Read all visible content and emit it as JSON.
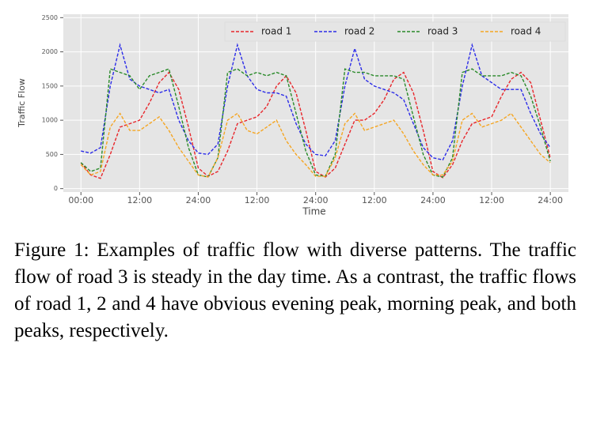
{
  "chart_data": {
    "type": "line",
    "xlabel": "Time",
    "ylabel": "Traffic Flow",
    "x": [
      0,
      2,
      4,
      6,
      8,
      10,
      12,
      14,
      16,
      18,
      20,
      22,
      24,
      26,
      28,
      30,
      32,
      34,
      36,
      38,
      40,
      42,
      44,
      46,
      48,
      50,
      52,
      54,
      56,
      58,
      60,
      62,
      64,
      66,
      68,
      70,
      72,
      74,
      76,
      78,
      80,
      82,
      84,
      86,
      88,
      90,
      92,
      94,
      96
    ],
    "series": [
      {
        "name": "road 1",
        "color": "#e8262b",
        "values": [
          380,
          200,
          150,
          500,
          900,
          950,
          1000,
          1250,
          1550,
          1700,
          1450,
          900,
          300,
          180,
          250,
          550,
          950,
          1000,
          1050,
          1200,
          1500,
          1650,
          1400,
          850,
          250,
          170,
          300,
          650,
          1000,
          1000,
          1100,
          1300,
          1600,
          1700,
          1400,
          850,
          250,
          160,
          350,
          700,
          950,
          1000,
          1050,
          1350,
          1600,
          1700,
          1550,
          1000,
          450
        ]
      },
      {
        "name": "road 2",
        "color": "#2b2be8",
        "values": [
          550,
          520,
          600,
          1500,
          2100,
          1600,
          1500,
          1450,
          1400,
          1450,
          1000,
          700,
          520,
          500,
          650,
          1500,
          2100,
          1650,
          1450,
          1400,
          1400,
          1350,
          950,
          650,
          500,
          480,
          700,
          1500,
          2050,
          1600,
          1500,
          1450,
          1400,
          1300,
          950,
          600,
          450,
          420,
          700,
          1500,
          2100,
          1650,
          1550,
          1450,
          1450,
          1450,
          1100,
          800,
          600
        ]
      },
      {
        "name": "road 3",
        "color": "#2a8a2a",
        "values": [
          380,
          250,
          300,
          1750,
          1700,
          1650,
          1450,
          1650,
          1700,
          1750,
          1200,
          600,
          200,
          170,
          450,
          1700,
          1750,
          1650,
          1700,
          1650,
          1700,
          1650,
          1100,
          550,
          200,
          180,
          500,
          1750,
          1700,
          1700,
          1650,
          1650,
          1650,
          1600,
          1050,
          500,
          200,
          170,
          450,
          1700,
          1750,
          1650,
          1650,
          1650,
          1700,
          1650,
          1350,
          900,
          400
        ]
      },
      {
        "name": "road 4",
        "color": "#f5a623",
        "values": [
          350,
          200,
          250,
          900,
          1100,
          850,
          850,
          950,
          1050,
          850,
          600,
          400,
          200,
          170,
          450,
          1000,
          1100,
          850,
          800,
          900,
          1000,
          700,
          500,
          350,
          180,
          180,
          450,
          950,
          1100,
          850,
          900,
          950,
          1000,
          800,
          550,
          350,
          200,
          200,
          400,
          1000,
          1100,
          900,
          950,
          1000,
          1100,
          900,
          700,
          500,
          380
        ]
      }
    ],
    "xlim": [
      -3.6,
      99.7
    ],
    "xticks": [
      {
        "value": 0,
        "label": "00:00"
      },
      {
        "value": 12,
        "label": "12:00"
      },
      {
        "value": 24,
        "label": "24:00"
      },
      {
        "value": 36,
        "label": "12:00"
      },
      {
        "value": 48,
        "label": "24:00"
      },
      {
        "value": 60,
        "label": "12:00"
      },
      {
        "value": 72,
        "label": "24:00"
      },
      {
        "value": 84,
        "label": "12:00"
      },
      {
        "value": 96,
        "label": "24:00"
      }
    ],
    "ylim": [
      -50,
      2550
    ],
    "yticks": [
      0,
      500,
      1000,
      1500,
      2000,
      2500
    ],
    "grid": true,
    "legend": "upper right"
  },
  "caption": "Figure 1: Examples of traffic flow with diverse patterns. The traffic flow of road 3 is steady in the day time. As a contrast, the traffic flows of road 1, 2 and 4 have obvious evening peak, morning peak, and both peaks, respectively."
}
